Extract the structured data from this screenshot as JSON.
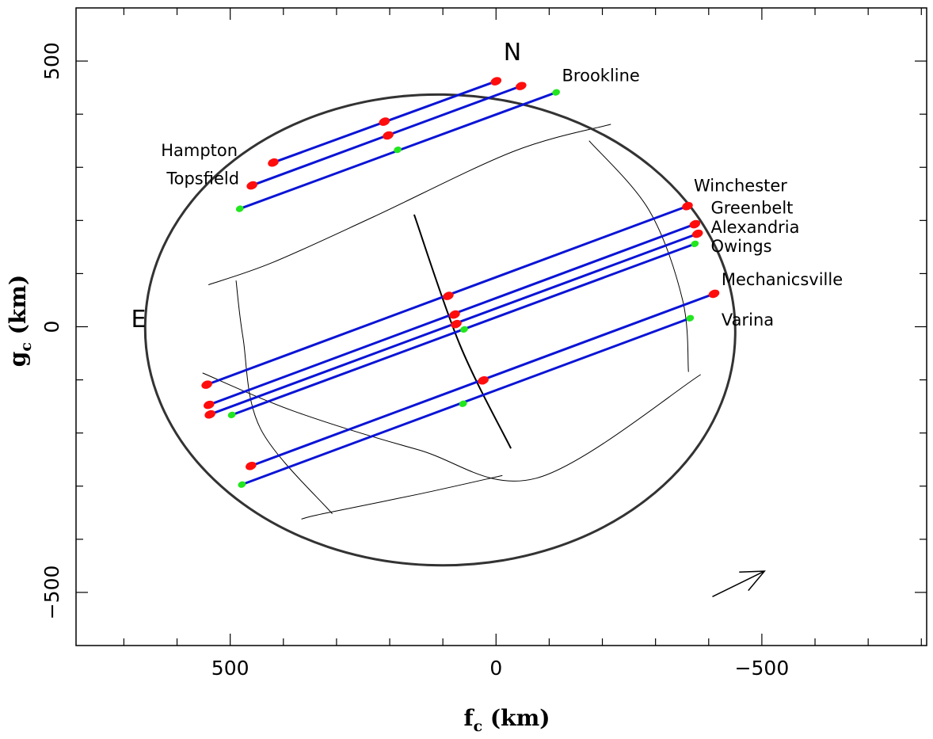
{
  "chart_data": {
    "type": "scatter",
    "title": "",
    "x_axis": {
      "label_main": "f",
      "label_sub": "c",
      "label_unit": " (km)",
      "lim": [
        790,
        -810
      ],
      "inverted": true,
      "ticks": [
        500,
        0,
        -500
      ],
      "tick_labels": [
        "500",
        "0",
        "−500"
      ],
      "minor_step": 100
    },
    "y_axis": {
      "label_main": "g",
      "label_sub": "c",
      "label_unit": " (km)",
      "lim": [
        -600,
        600
      ],
      "ticks": [
        500,
        0,
        -500
      ],
      "tick_labels": [
        "500",
        "0",
        "−500"
      ],
      "minor_step": 100
    },
    "colors": {
      "chord": "#0a14d6",
      "timing_point": "#ff0d0d",
      "timing_point_alt": "#22e61e",
      "limb": "#333333",
      "grid": "#000000"
    },
    "limb": {
      "center": [
        105,
        -6
      ],
      "a": 555,
      "b": 443,
      "angle_deg": 1
    },
    "graticule": {
      "latitudes": [
        [
          [
            541,
            79
          ],
          [
            420,
            121
          ],
          [
            230,
            207
          ],
          [
            -33,
            330
          ],
          [
            -216,
            381
          ]
        ],
        [
          [
            552,
            -87
          ],
          [
            380,
            -159
          ],
          [
            148,
            -231
          ],
          [
            -76,
            -285
          ],
          [
            -385,
            -90
          ]
        ],
        [
          [
            366,
            -362
          ],
          [
            326,
            -352
          ],
          [
            145,
            -315
          ],
          [
            -12,
            -280
          ]
        ]
      ],
      "meridians": [
        [
          [
            154,
            211
          ],
          [
            68,
            -34
          ],
          [
            -28,
            -229
          ]
        ],
        [
          [
            489,
            87
          ],
          [
            476,
            -20
          ],
          [
            443,
            -192
          ],
          [
            308,
            -352
          ]
        ],
        [
          [
            -175,
            350
          ],
          [
            -288,
            219
          ],
          [
            -351,
            50
          ],
          [
            -362,
            -85
          ]
        ]
      ]
    },
    "direction_arrow": {
      "from": [
        -407,
        -508
      ],
      "to": [
        -505,
        -460
      ]
    },
    "compass": {
      "north": "N",
      "east": "E"
    },
    "chords": [
      {
        "site": "Brookline",
        "x1": 482,
        "y1": 222,
        "x2": -113,
        "y2": 441,
        "points": [
          [
            482,
            222
          ],
          [
            185,
            333
          ],
          [
            -113,
            441
          ]
        ],
        "colors": [
          "alt",
          "alt",
          "alt"
        ]
      },
      {
        "site": "Topsfield",
        "x1": 459,
        "y1": 266,
        "x2": -47,
        "y2": 453,
        "points": [
          [
            459,
            266
          ],
          [
            203,
            360
          ],
          [
            -47,
            453
          ]
        ],
        "colors": [
          "main",
          "main",
          "main"
        ]
      },
      {
        "site": "Hampton",
        "x1": 419,
        "y1": 309,
        "x2": 0,
        "y2": 462,
        "points": [
          [
            419,
            309
          ],
          [
            210,
            386
          ],
          [
            0,
            462
          ]
        ],
        "colors": [
          "main",
          "main",
          "main"
        ]
      },
      {
        "site": "Winchester",
        "x1": 544,
        "y1": -109,
        "x2": -360,
        "y2": 227,
        "points": [
          [
            544,
            -109
          ],
          [
            90,
            58
          ],
          [
            -360,
            227
          ]
        ],
        "colors": [
          "main",
          "main",
          "main"
        ]
      },
      {
        "site": "Greenbelt",
        "x1": 540,
        "y1": -147,
        "x2": -374,
        "y2": 193,
        "points": [
          [
            540,
            -147
          ],
          [
            78,
            23
          ],
          [
            -374,
            193
          ]
        ],
        "colors": [
          "main",
          "main",
          "main"
        ]
      },
      {
        "site": "Alexandria",
        "x1": 538,
        "y1": -165,
        "x2": -379,
        "y2": 175,
        "points": [
          [
            538,
            -165
          ],
          [
            75,
            5
          ],
          [
            -379,
            175
          ]
        ],
        "colors": [
          "main",
          "main",
          "main"
        ]
      },
      {
        "site": "Owings",
        "x1": 497,
        "y1": -166,
        "x2": -374,
        "y2": 156,
        "points": [
          [
            497,
            -166
          ],
          [
            60,
            -5
          ],
          [
            -374,
            156
          ]
        ],
        "colors": [
          "alt",
          "alt",
          "alt"
        ]
      },
      {
        "site": "Mechanicsville",
        "x1": 461,
        "y1": -262,
        "x2": -410,
        "y2": 62,
        "points": [
          [
            461,
            -262
          ],
          [
            24,
            -101
          ],
          [
            -410,
            62
          ]
        ],
        "colors": [
          "main",
          "main",
          "main"
        ]
      },
      {
        "site": "Varina",
        "x1": 478,
        "y1": -297,
        "x2": -365,
        "y2": 16,
        "points": [
          [
            478,
            -297
          ],
          [
            62,
            -145
          ],
          [
            -365,
            16
          ]
        ],
        "colors": [
          "alt",
          "alt",
          "alt"
        ]
      }
    ],
    "site_labels": [
      {
        "text": "Brookline",
        "x": -124,
        "y": 462,
        "anchor": "start"
      },
      {
        "text": "Hampton",
        "x": 486,
        "y": 321,
        "anchor": "end"
      },
      {
        "text": "Topsfield",
        "x": 483,
        "y": 268,
        "anchor": "end"
      },
      {
        "text": "Winchester",
        "x": -372,
        "y": 255,
        "anchor": "start"
      },
      {
        "text": "Greenbelt",
        "x": -404,
        "y": 213,
        "anchor": "start"
      },
      {
        "text": "Alexandria",
        "x": -404,
        "y": 177,
        "anchor": "start"
      },
      {
        "text": "Owings",
        "x": -404,
        "y": 141,
        "anchor": "start"
      },
      {
        "text": "Mechanicsville",
        "x": -424,
        "y": 78,
        "anchor": "start"
      },
      {
        "text": "Varina",
        "x": -424,
        "y": 2,
        "anchor": "start"
      }
    ]
  }
}
